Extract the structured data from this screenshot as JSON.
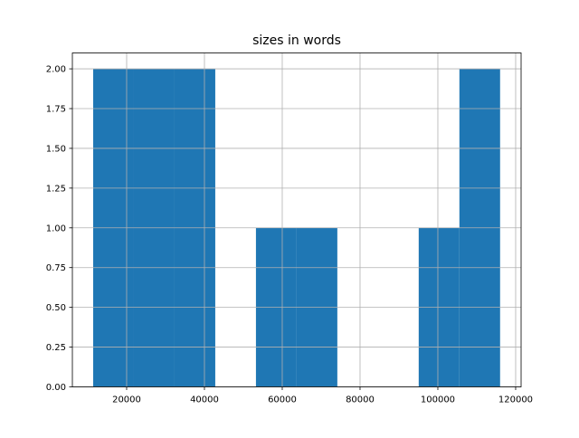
{
  "chart_data": {
    "type": "bar",
    "subtype": "histogram",
    "title": "sizes in words",
    "xlabel": "",
    "ylabel": "",
    "bin_edges": [
      11400,
      21860,
      32320,
      42780,
      53240,
      63700,
      74160,
      84620,
      95080,
      105540,
      116000
    ],
    "counts": [
      2,
      2,
      2,
      0,
      1,
      1,
      0,
      0,
      1,
      2
    ],
    "xlim": [
      6050,
      121400
    ],
    "ylim": [
      0,
      2.1
    ],
    "xticks": [
      20000,
      40000,
      60000,
      80000,
      100000,
      120000
    ],
    "xtick_labels": [
      "20000",
      "40000",
      "60000",
      "80000",
      "100000",
      "120000"
    ],
    "yticks": [
      0,
      0.25,
      0.5,
      0.75,
      1.0,
      1.25,
      1.5,
      1.75,
      2.0
    ],
    "ytick_labels": [
      "0.00",
      "0.25",
      "0.50",
      "0.75",
      "1.00",
      "1.25",
      "1.50",
      "1.75",
      "2.00"
    ],
    "grid": true,
    "bar_color": "#1f77b4",
    "grid_color": "#b0b0b0"
  }
}
